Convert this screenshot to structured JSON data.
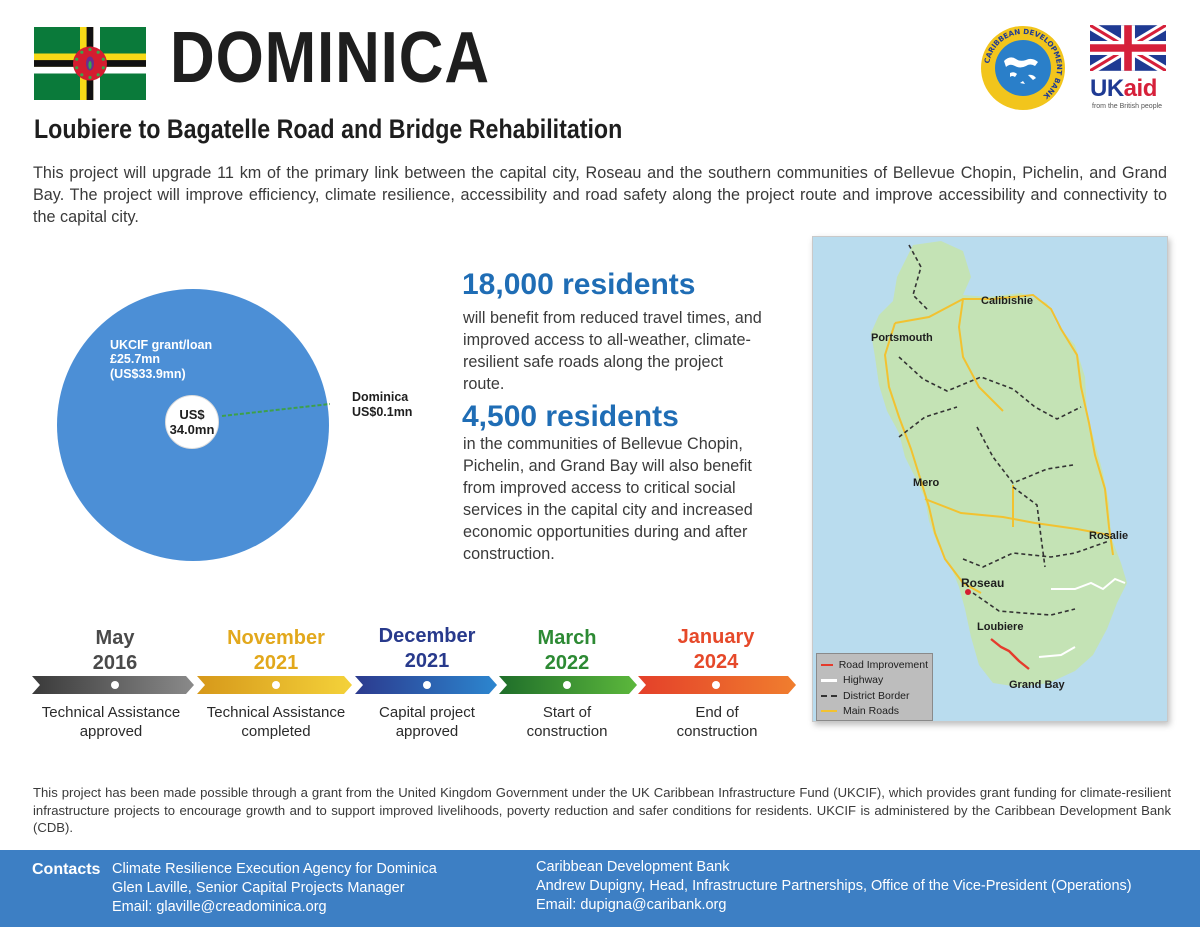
{
  "header": {
    "country": "DOMINICA",
    "subtitle": "Loubiere to Bagatelle Road and Bridge Rehabilitation",
    "cdb_logo_icon": "caribbean-development-bank-logo",
    "cdb_logo_text": "CARIBBEAN DEVELOPMENT BANK",
    "ukaid_brand_uk": "UK",
    "ukaid_brand_aid": "aid",
    "ukaid_sub": "from the British people"
  },
  "intro": "This project will upgrade 11 km of the primary link between the capital city, Roseau and the southern communities of Bellevue Chopin, Pichelin, and Grand Bay. The project will improve efficiency, climate resilience, accessibility and road safety along the project route and improve accessibility and connectivity to the capital city.",
  "funding": {
    "ukcif_line1": "UKCIF grant/loan",
    "ukcif_line2": "£25.7mn",
    "ukcif_line3": "(US$33.9mn)",
    "total_line1": "US$",
    "total_line2": "34.0mn",
    "dominica_line1": "Dominica",
    "dominica_line2": "US$0.1mn",
    "slices": [
      {
        "label": "UKCIF grant/loan",
        "value_usd_mn": 33.9,
        "color": "#4c8fd6"
      },
      {
        "label": "Dominica",
        "value_usd_mn": 0.1,
        "color": "#3da04a"
      }
    ]
  },
  "stats": [
    {
      "figure": "18,000 residents",
      "text": "will benefit from reduced travel times, and improved access to all-weather, climate-resilient safe roads along the project route."
    },
    {
      "figure": "4,500 residents",
      "text": "in the communities of Bellevue Chopin, Pichelin, and Grand Bay will also benefit from improved access to critical social services in the capital city and increased economic opportunities during and after construction."
    }
  ],
  "map": {
    "towns": [
      "Calibishie",
      "Portsmouth",
      "Mero",
      "Rosalie",
      "Roseau",
      "Loubiere",
      "Grand Bay"
    ],
    "legend": [
      {
        "label": "Road Improvement",
        "color": "#e53b2c"
      },
      {
        "label": "Highway",
        "color": "#ffffff"
      },
      {
        "label": "District Border",
        "color": "#333333"
      },
      {
        "label": "Main Roads",
        "color": "#f2c230"
      }
    ]
  },
  "timeline": [
    {
      "month": "May",
      "year": "2016",
      "caption1": "Technical Assistance",
      "caption2": "approved",
      "color": "#4a4a4a"
    },
    {
      "month": "November",
      "year": "2021",
      "caption1": "Technical Assistance",
      "caption2": "completed",
      "color": "#e2a81c"
    },
    {
      "month": "December",
      "year": "2021",
      "caption1": "Capital project",
      "caption2": "approved",
      "color": "#283a8c"
    },
    {
      "month": "March",
      "year": "2022",
      "caption1": "Start of",
      "caption2": "construction",
      "color": "#2d8a34"
    },
    {
      "month": "January",
      "year": "2024",
      "caption1": "End of",
      "caption2": "construction",
      "color": "#e6492a"
    }
  ],
  "footnote": "This project has been made possible through a grant from the United Kingdom Government under the UK Caribbean Infrastructure Fund (UKCIF), which provides grant funding for climate-resilient infrastructure projects to encourage growth and to support improved livelihoods, poverty reduction and safer conditions for residents. UKCIF is administered by the Caribbean Development Bank (CDB).",
  "contacts": {
    "title": "Contacts",
    "left": [
      "Climate Resilience Execution Agency for Dominica",
      "Glen Laville, Senior Capital Projects Manager",
      "Email: glaville@creadominica.org"
    ],
    "right": [
      "Caribbean Development Bank",
      "Andrew Dupigny, Head, Infrastructure Partnerships, Office of the Vice-President (Operations)",
      "Email: dupigna@caribank.org"
    ]
  }
}
